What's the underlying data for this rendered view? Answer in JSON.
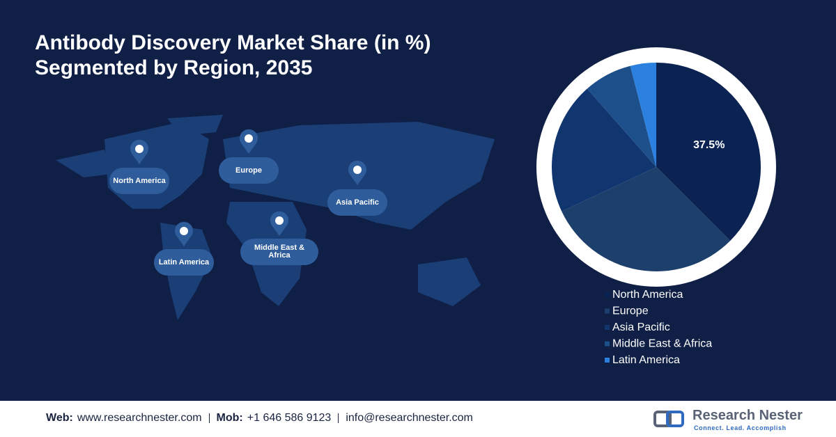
{
  "chart_data": {
    "type": "pie",
    "title": "Antibody Discovery Market Share (in %) Segmented by Region, 2035",
    "categories": [
      "North America",
      "Europe",
      "Asia Pacific",
      "Middle East & Africa",
      "Latin America"
    ],
    "values": [
      37.5,
      30.5,
      20.5,
      7.5,
      4
    ],
    "value_labels": [
      "37.5%",
      null,
      null,
      null,
      null
    ],
    "colors": [
      "#0b2352",
      "#1c3f6b",
      "#10356f",
      "#1d4f8a",
      "#2b80e0"
    ],
    "legend": "bottom-right"
  },
  "footer": {
    "web_label": "Web:",
    "web": "www.researchnester.com",
    "mob_label": "Mob:",
    "mob": "+1 646 586 9123",
    "email": "info@researchnester.com",
    "brand": "Research Nester",
    "tagline": "Connect. Lead. Accomplish"
  }
}
